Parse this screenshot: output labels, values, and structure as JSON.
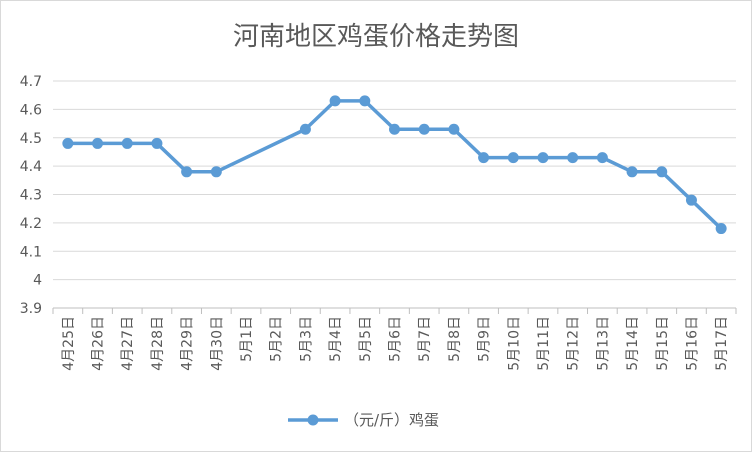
{
  "chart_data": {
    "type": "line",
    "title": "河南地区鸡蛋价格走势图",
    "xlabel": "",
    "ylabel": "",
    "categories": [
      "4月25日",
      "4月26日",
      "4月27日",
      "4月28日",
      "4月29日",
      "4月30日",
      "5月1日",
      "5月2日",
      "5月3日",
      "5月4日",
      "5月5日",
      "5月6日",
      "5月7日",
      "5月8日",
      "5月9日",
      "5月10日",
      "5月11日",
      "5月12日",
      "5月13日",
      "5月14日",
      "5月15日",
      "5月16日",
      "5月17日"
    ],
    "series": [
      {
        "name": "（元/斤）鸡蛋",
        "values": [
          4.48,
          4.48,
          4.48,
          4.48,
          4.38,
          4.38,
          null,
          null,
          4.53,
          4.63,
          4.63,
          4.53,
          4.53,
          4.53,
          4.43,
          4.43,
          4.43,
          4.43,
          4.43,
          4.38,
          4.38,
          4.28,
          4.18
        ],
        "color": "#5b9bd5"
      }
    ],
    "ylim": [
      3.9,
      4.7
    ],
    "yticks": [
      "3.9",
      "4",
      "4.1",
      "4.2",
      "4.3",
      "4.4",
      "4.5",
      "4.6",
      "4.7"
    ],
    "ytick_values": [
      3.9,
      4.0,
      4.1,
      4.2,
      4.3,
      4.4,
      4.5,
      4.6,
      4.7
    ],
    "grid": true,
    "legend": "bottom",
    "gap_handling": "connect"
  },
  "colors": {
    "grid": "#d9d9d9",
    "axis": "#bfbfbf",
    "text": "#595959",
    "series": "#5b9bd5"
  }
}
